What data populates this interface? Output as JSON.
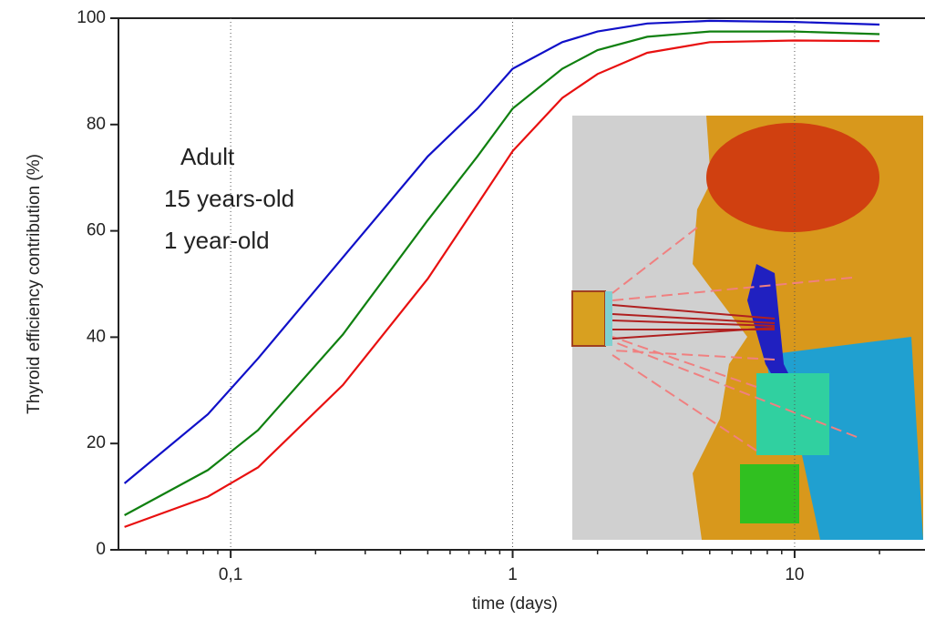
{
  "chart_data": {
    "type": "line",
    "x_label": "time (days)",
    "y_label": "Thyroid efficiency contribution (%)",
    "x": [
      0.042,
      0.083,
      0.125,
      0.25,
      0.5,
      0.75,
      1,
      1.5,
      2,
      3,
      5,
      10,
      20
    ],
    "series": [
      {
        "name": "Adult",
        "color": "#1010c8",
        "values": [
          12.5,
          25.5,
          36,
          55,
          74,
          83,
          90.5,
          95.5,
          97.5,
          99,
          99.5,
          99.3,
          98.8
        ]
      },
      {
        "name": "15 years-old",
        "color": "#108010",
        "values": [
          6.5,
          15,
          22.5,
          40.5,
          62,
          74,
          83,
          90.5,
          94,
          96.5,
          97.5,
          97.5,
          97
        ]
      },
      {
        "name": "1 year-old",
        "color": "#e81010",
        "values": [
          4.3,
          10,
          15.5,
          31,
          51,
          65,
          75,
          85,
          89.5,
          93.5,
          95.5,
          95.8,
          95.7
        ]
      }
    ],
    "log_x": true,
    "xlim": [
      0.04,
      29
    ],
    "xticks": [
      {
        "value": 0.1,
        "label": "0,1"
      },
      1,
      10
    ],
    "xminorticks": [
      0.05,
      0.06,
      0.07,
      0.08,
      0.09,
      0.2,
      0.3,
      0.4,
      0.5,
      0.6,
      0.7,
      0.8,
      0.9,
      2,
      3,
      4,
      5,
      6,
      7,
      8,
      9,
      20
    ],
    "ylim": [
      0,
      100
    ],
    "yticks": [
      0,
      20,
      40,
      60,
      80,
      100
    ],
    "grid": "x"
  }
}
